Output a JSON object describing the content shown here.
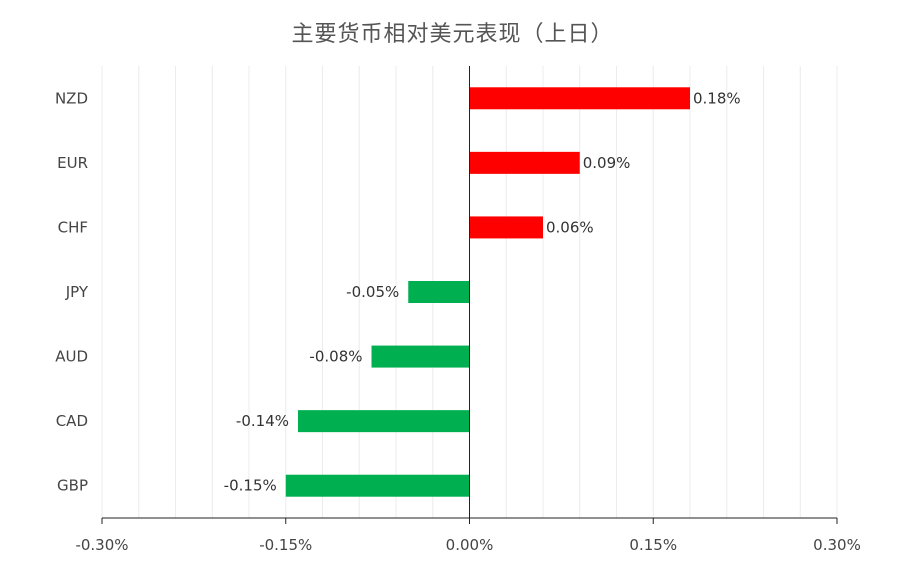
{
  "chart_data": {
    "type": "bar",
    "orientation": "horizontal",
    "title": "主要货币相对美元表现（上日）",
    "categories": [
      "NZD",
      "EUR",
      "CHF",
      "JPY",
      "AUD",
      "CAD",
      "GBP"
    ],
    "values": [
      0.18,
      0.09,
      0.06,
      -0.05,
      -0.08,
      -0.14,
      -0.15
    ],
    "value_labels": [
      "0.18%",
      "0.09%",
      "0.06%",
      "-0.05%",
      "-0.08%",
      "-0.14%",
      "-0.15%"
    ],
    "xlim": [
      -0.3,
      0.3
    ],
    "xticks": [
      -0.3,
      -0.15,
      0.0,
      0.15,
      0.3
    ],
    "xtick_labels": [
      "-0.30%",
      "-0.15%",
      "0.00%",
      "0.15%",
      "0.30%"
    ],
    "minor_grid_step": 0.03,
    "grid": true,
    "legend": "none",
    "positive_color": "#ff0000",
    "negative_color": "#00b050"
  }
}
